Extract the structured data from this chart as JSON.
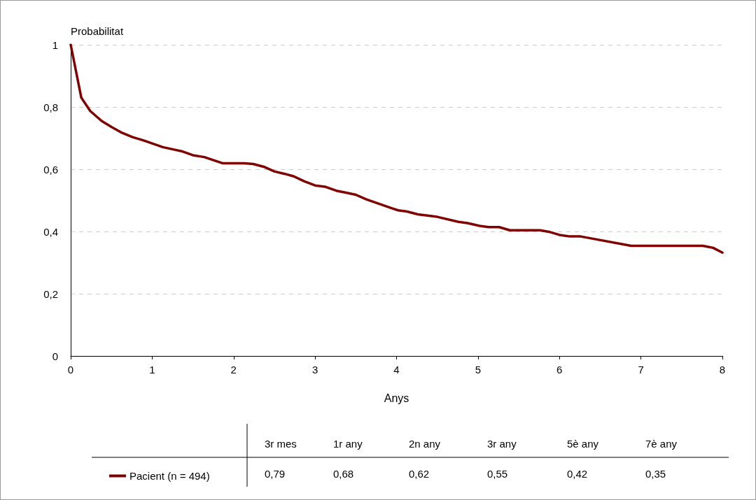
{
  "chart_data": {
    "type": "line",
    "xlabel": "Anys",
    "ylabel": "Probabilitat",
    "x": [
      0,
      0.13,
      0.24,
      0.38,
      0.5,
      0.63,
      0.76,
      0.89,
      1.13,
      1.36,
      1.5,
      1.64,
      1.87,
      2.13,
      2.24,
      2.37,
      2.5,
      2.63,
      2.74,
      2.87,
      3.0,
      3.12,
      3.26,
      3.39,
      3.5,
      3.63,
      3.95,
      4.02,
      4.13,
      4.26,
      4.5,
      4.76,
      4.87,
      5.02,
      5.13,
      5.26,
      5.39,
      5.76,
      5.87,
      6.0,
      6.13,
      6.26,
      6.88,
      7.76,
      7.89,
      8.0
    ],
    "series": [
      {
        "name": "Pacient (n = 494)",
        "color": "#800000",
        "values": [
          1.0,
          0.83,
          0.787,
          0.755,
          0.736,
          0.717,
          0.703,
          0.693,
          0.671,
          0.658,
          0.645,
          0.639,
          0.619,
          0.619,
          0.617,
          0.608,
          0.593,
          0.585,
          0.577,
          0.561,
          0.548,
          0.544,
          0.531,
          0.524,
          0.518,
          0.503,
          0.474,
          0.468,
          0.464,
          0.455,
          0.447,
          0.431,
          0.427,
          0.418,
          0.414,
          0.414,
          0.404,
          0.404,
          0.399,
          0.389,
          0.384,
          0.384,
          0.354,
          0.354,
          0.347,
          0.332
        ]
      }
    ],
    "xlim": [
      0,
      8
    ],
    "xticks": [
      0,
      1,
      2,
      3,
      4,
      5,
      6,
      7,
      8
    ],
    "ylim": [
      0,
      1
    ],
    "yticks": [
      0,
      {
        "value": 0.2,
        "label": "0,2"
      },
      {
        "value": 0.4,
        "label": "0,4"
      },
      {
        "value": 0.6,
        "label": "0,6"
      },
      {
        "value": 0.8,
        "label": "0,8"
      },
      1
    ],
    "grid": "y",
    "legend": "bottom left",
    "marker": "none",
    "line_style": "solid",
    "annotations": [
      "3r mes",
      "1r any",
      "2n any",
      "3r any",
      "5è any",
      "7è any",
      "0,79",
      "0,68",
      "0,62",
      "0,55",
      "0,42",
      "0,35"
    ]
  }
}
